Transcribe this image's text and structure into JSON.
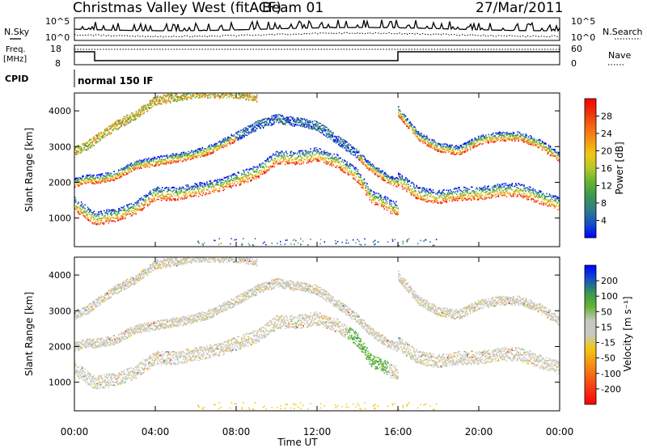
{
  "header": {
    "station": "Christmas Valley West (fitACF)",
    "beam": "Beam 01",
    "date": "27/Mar/2011"
  },
  "top_panels": {
    "nsky_label": "N.Sky",
    "nsearch_label": "N.Search",
    "freq_label_line1": "Freq.",
    "freq_label_line2": "[MHz]",
    "nave_label": "Nave",
    "cpid_label": "CPID",
    "cpid_value": "normal 150 IF",
    "noise_ticks_left": [
      "10^5",
      "10^0"
    ],
    "noise_ticks_right": [
      "10^5",
      "10^0"
    ],
    "freq_ticks": [
      "18",
      "8"
    ],
    "nave_ticks": [
      "60",
      "0"
    ]
  },
  "chart_data": [
    {
      "type": "heatmap",
      "panel": "power",
      "ylabel": "Slant Range [km]",
      "yticks": [
        "1000",
        "2000",
        "3000",
        "4000"
      ],
      "ylim": [
        200,
        4500
      ],
      "xlim": [
        0,
        24
      ],
      "colorbar_label": "Power [dB]",
      "colorbar_ticks": [
        "28",
        "24",
        "20",
        "16",
        "12",
        "8",
        "4"
      ],
      "colorbar_colors": [
        "#0000ff",
        "#1450c8",
        "#2f7d8c",
        "#3c9650",
        "#64b432",
        "#b4c828",
        "#f0c814",
        "#f59614",
        "#f56414",
        "#eb320a",
        "#ff0000"
      ],
      "bands": [
        {
          "x": [
            0.0,
            1.0,
            2.0,
            3.0,
            4.0,
            5.0,
            6.0,
            7.0,
            8.0,
            9.0,
            10.0,
            11.0,
            12.0,
            13.0,
            14.0,
            14.7,
            15.2,
            15.7,
            16.0
          ],
          "y": [
            1400,
            1000,
            1100,
            1300,
            1700,
            1700,
            1800,
            1900,
            2100,
            2300,
            2700,
            2700,
            2800,
            2600,
            2200,
            1600,
            1500,
            1300,
            1300
          ]
        },
        {
          "x": [
            0.0,
            0.5,
            1.0,
            2.0,
            3.0,
            4.0,
            5.0,
            6.0,
            7.0,
            8.0,
            9.0,
            10.0,
            11.0,
            12.0,
            13.0,
            14.0,
            14.5,
            15.0,
            15.5,
            16.0
          ],
          "y": [
            2000,
            2100,
            2100,
            2200,
            2500,
            2600,
            2700,
            2800,
            3000,
            3300,
            3600,
            3800,
            3700,
            3600,
            3200,
            2800,
            2500,
            2300,
            2100,
            2000
          ]
        },
        {
          "x": [
            0.0,
            0.5,
            1.0,
            2.0,
            3.0,
            4.0,
            5.0,
            6.0,
            7.0,
            8.0,
            9.0
          ],
          "y": [
            2900,
            3000,
            3200,
            3600,
            3900,
            4300,
            4400,
            4500,
            4500,
            4500,
            4400
          ]
        },
        {
          "x": [
            16.0,
            17.0,
            18.0,
            19.0,
            20.0,
            21.0,
            22.0,
            23.0,
            24.0
          ],
          "y": [
            2100,
            1700,
            1600,
            1700,
            1700,
            1800,
            1800,
            1600,
            1400
          ]
        },
        {
          "x": [
            16.0,
            17.0,
            18.0,
            19.0,
            20.0,
            21.0,
            22.0,
            23.0,
            24.0
          ],
          "y": [
            4000,
            3300,
            3000,
            2900,
            3200,
            3300,
            3300,
            3100,
            2700
          ]
        }
      ]
    },
    {
      "type": "heatmap",
      "panel": "velocity",
      "ylabel": "Slant Range [km]",
      "yticks": [
        "1000",
        "2000",
        "3000",
        "4000"
      ],
      "ylim": [
        200,
        4500
      ],
      "xlim": [
        0,
        24
      ],
      "xlabel": "Time UT",
      "xticks": [
        "00:00",
        "04:00",
        "08:00",
        "12:00",
        "16:00",
        "20:00",
        "00:00"
      ],
      "colorbar_label": "Velocity [m s⁻¹]",
      "colorbar_ticks": [
        "200",
        "100",
        "50",
        "15",
        "-15",
        "-50",
        "-100",
        "-200"
      ],
      "colorbar_colors": [
        "#ff0000",
        "#f53214",
        "#f56414",
        "#f59614",
        "#f0c814",
        "#c8c8c0",
        "#c8c8c0",
        "#64b432",
        "#3c9650",
        "#1450c8",
        "#0000ff"
      ],
      "ground_color": "#c8c8c0"
    }
  ]
}
